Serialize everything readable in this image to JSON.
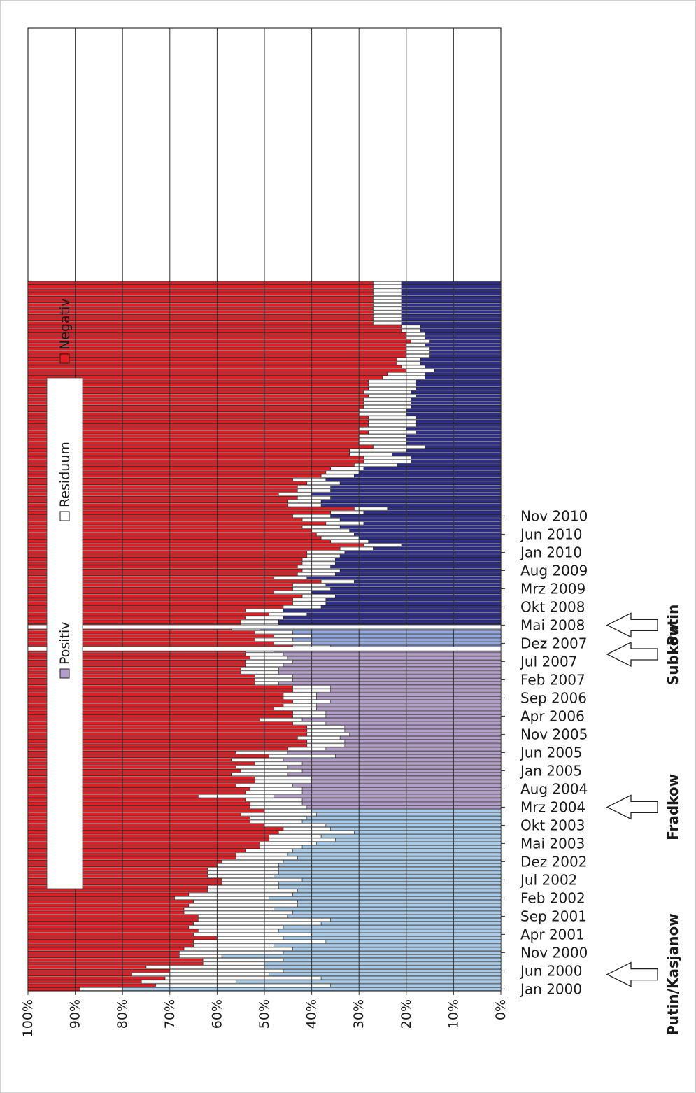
{
  "chart_data": {
    "type": "bar",
    "orientation": "horizontal",
    "stacked": "percent",
    "axis_direction": "reversed",
    "xaxis": {
      "range": [
        0,
        100
      ],
      "tick_labels": [
        "100%",
        "90%",
        "80%",
        "70%",
        "60%",
        "50%",
        "40%",
        "30%",
        "20%",
        "10%",
        "0%"
      ],
      "label_rotation": -90
    },
    "yaxis": {
      "start": "Jan 2000",
      "end": "Nov 2010",
      "tick_labels": [
        "Jan 2000",
        "Jun 2000",
        "Nov 2000",
        "Apr 2001",
        "Sep 2001",
        "Feb 2002",
        "Jul 2002",
        "Dez 2002",
        "Mai 2003",
        "Okt 2003",
        "Mrz 2004",
        "Aug 2004",
        "Jan 2005",
        "Jun 2005",
        "Nov 2005",
        "Apr 2006",
        "Sep 2006",
        "Feb 2007",
        "Jul 2007",
        "Dez 2007",
        "Mai 2008",
        "Okt 2008",
        "Mrz 2009",
        "Aug 2009",
        "Jan 2010",
        "Jun 2010",
        "Nov 2010"
      ]
    },
    "legend": {
      "placement": "left, rotated 90°",
      "entries": [
        {
          "label": "Positiv",
          "color": "#b39ec9"
        },
        {
          "label": "Residuum",
          "color": "#ffffff"
        },
        {
          "label": "Negativ",
          "color": "#e31d23"
        }
      ]
    },
    "colors": {
      "negativ": "#e31d23",
      "residuum": "#ffffff",
      "positiv_kasjanow": "#a8cbea",
      "positiv_fradkow": "#b39ec9",
      "positiv_subkow": "#93a8e0",
      "positiv_putin": "#2e2e8a",
      "bar_outline": "#1a1a1a"
    },
    "grid": true,
    "annotations": [
      {
        "label": "Putin/Kasjanow",
        "at": "May 2000"
      },
      {
        "label": "Fradkow",
        "at": "Mar 2004"
      },
      {
        "label": "Subkow",
        "at": "Sep 2007"
      },
      {
        "label": "Putin",
        "at": "May 2008"
      }
    ],
    "series": [
      {
        "name": "Negativ",
        "values": [
          11,
          27,
          24,
          29,
          22,
          30,
          25,
          37,
          37,
          32,
          32,
          33,
          35,
          35,
          40,
          35,
          36,
          34,
          35,
          36,
          36,
          33,
          33,
          34,
          35,
          31,
          34,
          38,
          38,
          41,
          41,
          38,
          38,
          38,
          40,
          41,
          44,
          44,
          46,
          49,
          49,
          51,
          51,
          53,
          54,
          50,
          47,
          47,
          45,
          50,
          47,
          47,
          46,
          36,
          46,
          47,
          44,
          48,
          48,
          43,
          45,
          44,
          48,
          43,
          51,
          44,
          55,
          59,
          59,
          57,
          59,
          59,
          59,
          56,
          49,
          56,
          56,
          52,
          54,
          56,
          54,
          54,
          56,
          56,
          48,
          48,
          48,
          45,
          45,
          46,
          46,
          47,
          46,
          46,
          56,
          52,
          48,
          52,
          48,
          43,
          45,
          45,
          46,
          51,
          46,
          54,
          56,
          56,
          58,
          52,
          56,
          56,
          62,
          52,
          57,
          58,
          57,
          58,
          58,
          59,
          59,
          66,
          71,
          64,
          62,
          61,
          60,
          58,
          63,
          58,
          56,
          64,
          69,
          55,
          55,
          57,
          53,
          57,
          57,
          59,
          56,
          62,
          63,
          64,
          69,
          71,
          71,
          68,
          68,
          73,
          70,
          70,
          70,
          72,
          70,
          72,
          72,
          72,
          70,
          70,
          71,
          71,
          71,
          72,
          71,
          72,
          72,
          72,
          75,
          76,
          80,
          79,
          78,
          78,
          80,
          80,
          80,
          80,
          81,
          80,
          80,
          79,
          79,
          73,
          73,
          73,
          73,
          73,
          73,
          73,
          73,
          73,
          73,
          73,
          73
        ]
      },
      {
        "name": "Residuum",
        "values": [
          9,
          37,
          20,
          33,
          29,
          24,
          25,
          13,
          17,
          9,
          22,
          23,
          17,
          28,
          14,
          25,
          17,
          20,
          27,
          28,
          19,
          23,
          19,
          23,
          22,
          20,
          22,
          19,
          15,
          12,
          17,
          14,
          15,
          15,
          13,
          13,
          13,
          11,
          10,
          9,
          12,
          14,
          11,
          16,
          10,
          13,
          11,
          12,
          16,
          10,
          12,
          11,
          12,
          16,
          12,
          11,
          12,
          12,
          12,
          12,
          13,
          11,
          10,
          11,
          14,
          11,
          8,
          8,
          8,
          9,
          9,
          8,
          8,
          7,
          9,
          7,
          7,
          9,
          7,
          8,
          7,
          7,
          8,
          8,
          5,
          8,
          8,
          8,
          8,
          8,
          10,
          8,
          8,
          6,
          8,
          8,
          8,
          8,
          8,
          6,
          8,
          8,
          8,
          8,
          8,
          8,
          7,
          7,
          7,
          8,
          8,
          7,
          7,
          7,
          8,
          8,
          7,
          7,
          7,
          7,
          8,
          7,
          8,
          8,
          8,
          8,
          8,
          8,
          8,
          8,
          8,
          7,
          7,
          7,
          7,
          7,
          7,
          7,
          7,
          7,
          7,
          7,
          7,
          7,
          9,
          10,
          10,
          9,
          12,
          11,
          10,
          10,
          10,
          10,
          10,
          10,
          10,
          10,
          10,
          10,
          10,
          10,
          10,
          10,
          10,
          10,
          10,
          10,
          9,
          8,
          6,
          5,
          5,
          5,
          5,
          5,
          5,
          4,
          4,
          4,
          4,
          4,
          4,
          6,
          6,
          6,
          6,
          6,
          6,
          6,
          6,
          6,
          6,
          6,
          6
        ]
      },
      {
        "name": "Positiv",
        "values": [
          80,
          36,
          56,
          38,
          49,
          46,
          50,
          50,
          46,
          59,
          46,
          44,
          48,
          37,
          46,
          40,
          47,
          46,
          38,
          36,
          45,
          44,
          48,
          43,
          43,
          49,
          44,
          43,
          47,
          47,
          42,
          48,
          47,
          47,
          47,
          46,
          43,
          45,
          44,
          42,
          39,
          35,
          38,
          31,
          36,
          37,
          42,
          41,
          39,
          40,
          41,
          42,
          42,
          48,
          42,
          42,
          44,
          40,
          40,
          45,
          42,
          45,
          42,
          46,
          35,
          45,
          37,
          33,
          33,
          34,
          32,
          33,
          33,
          37,
          42,
          37,
          37,
          39,
          39,
          36,
          39,
          39,
          36,
          36,
          47,
          44,
          44,
          47,
          47,
          46,
          44,
          45,
          46,
          48,
          36,
          40,
          44,
          40,
          44,
          51,
          47,
          47,
          46,
          41,
          46,
          38,
          37,
          37,
          35,
          40,
          36,
          37,
          31,
          41,
          35,
          34,
          36,
          35,
          35,
          34,
          33,
          27,
          21,
          28,
          30,
          31,
          32,
          34,
          29,
          34,
          36,
          29,
          24,
          38,
          38,
          36,
          40,
          36,
          36,
          34,
          37,
          31,
          30,
          29,
          22,
          19,
          19,
          23,
          20,
          16,
          20,
          20,
          20,
          18,
          20,
          18,
          18,
          18,
          20,
          20,
          19,
          19,
          19,
          18,
          19,
          18,
          18,
          18,
          16,
          16,
          14,
          16,
          17,
          17,
          15,
          15,
          15,
          16,
          15,
          16,
          16,
          17,
          17,
          21,
          21,
          21,
          21,
          21,
          21,
          21,
          21,
          21,
          21,
          21,
          21
        ]
      }
    ]
  }
}
